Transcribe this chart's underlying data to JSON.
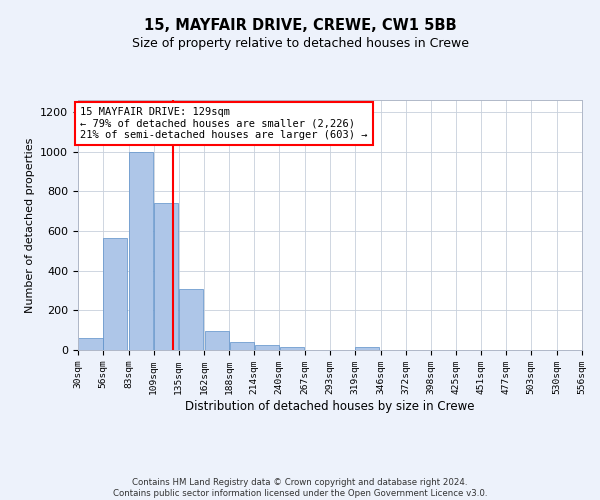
{
  "title_line1": "15, MAYFAIR DRIVE, CREWE, CW1 5BB",
  "title_line2": "Size of property relative to detached houses in Crewe",
  "xlabel": "Distribution of detached houses by size in Crewe",
  "ylabel": "Number of detached properties",
  "footer_line1": "Contains HM Land Registry data © Crown copyright and database right 2024.",
  "footer_line2": "Contains public sector information licensed under the Open Government Licence v3.0.",
  "property_size": 129,
  "annotation_line1": "15 MAYFAIR DRIVE: 129sqm",
  "annotation_line2": "← 79% of detached houses are smaller (2,226)",
  "annotation_line3": "21% of semi-detached houses are larger (603) →",
  "bar_color": "#aec6e8",
  "bar_edge_color": "#5b8fc9",
  "vline_color": "red",
  "bin_edges": [
    30,
    56,
    83,
    109,
    135,
    162,
    188,
    214,
    240,
    267,
    293,
    319,
    346,
    372,
    398,
    425,
    451,
    477,
    503,
    530,
    556
  ],
  "bin_labels": [
    "30sqm",
    "56sqm",
    "83sqm",
    "109sqm",
    "135sqm",
    "162sqm",
    "188sqm",
    "214sqm",
    "240sqm",
    "267sqm",
    "293sqm",
    "319sqm",
    "346sqm",
    "372sqm",
    "398sqm",
    "425sqm",
    "451sqm",
    "477sqm",
    "503sqm",
    "530sqm",
    "556sqm"
  ],
  "bar_heights": [
    62,
    567,
    1000,
    740,
    305,
    95,
    38,
    25,
    15,
    0,
    0,
    13,
    0,
    0,
    0,
    0,
    0,
    0,
    0,
    0
  ],
  "ylim": [
    0,
    1260
  ],
  "yticks": [
    0,
    200,
    400,
    600,
    800,
    1000,
    1200
  ],
  "background_color": "#edf2fb",
  "plot_background": "#ffffff",
  "grid_color": "#c8d0dc"
}
